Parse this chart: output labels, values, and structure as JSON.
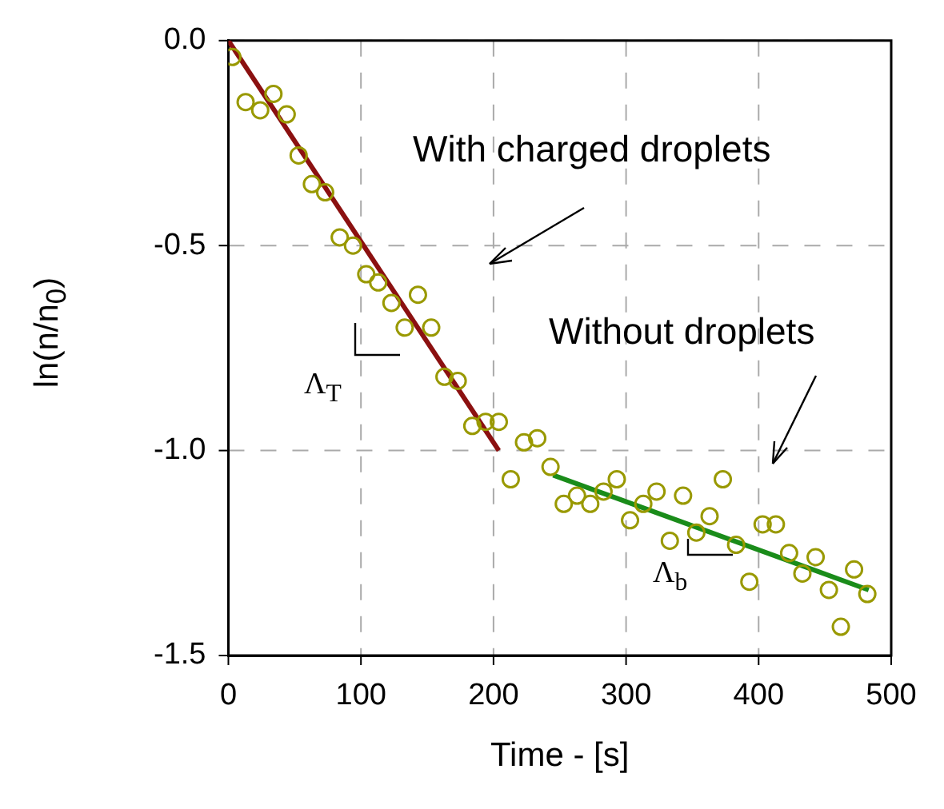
{
  "chart_data": {
    "type": "scatter",
    "xlabel": "Time - [s]",
    "ylabel": "ln(n/n$_{0}$)",
    "xlim": [
      0,
      500
    ],
    "xticks": [
      0,
      100,
      200,
      300,
      400,
      500
    ],
    "ylim": [
      -1.5,
      0
    ],
    "yticks": [
      {
        "value": -1.5,
        "label": "-1.5"
      },
      {
        "value": -1,
        "label": "-1.0"
      },
      {
        "value": -0.5,
        "label": "-0.5"
      },
      {
        "value": 0,
        "label": "0.0"
      }
    ],
    "grid": true,
    "legend": false,
    "series": [
      {
        "type": "scatter",
        "marker": "circle",
        "color": "#999900",
        "x": [
          3,
          13,
          24,
          34,
          44,
          53,
          63,
          73,
          84,
          94,
          104,
          113,
          123,
          133,
          143,
          153,
          163,
          173,
          184,
          194,
          204,
          213,
          223,
          233,
          243,
          253,
          263,
          273,
          283,
          293,
          303,
          313,
          323,
          333,
          343,
          353,
          363,
          373,
          383,
          393,
          403,
          413,
          423,
          433,
          443,
          453,
          462,
          472,
          482
        ],
        "values": [
          -0.04,
          -0.15,
          -0.17,
          -0.13,
          -0.18,
          -0.28,
          -0.35,
          -0.37,
          -0.48,
          -0.5,
          -0.57,
          -0.59,
          -0.64,
          -0.7,
          -0.62,
          -0.7,
          -0.82,
          -0.83,
          -0.94,
          -0.93,
          -0.93,
          -1.07,
          -0.98,
          -0.97,
          -1.04,
          -1.13,
          -1.11,
          -1.13,
          -1.1,
          -1.07,
          -1.17,
          -1.13,
          -1.1,
          -1.22,
          -1.11,
          -1.2,
          -1.16,
          -1.07,
          -1.23,
          -1.32,
          -1.18,
          -1.18,
          -1.25,
          -1.3,
          -1.26,
          -1.34,
          -1.43,
          -1.29,
          -1.35
        ]
      },
      {
        "type": "line",
        "marker": "none",
        "line_style": "solid",
        "color": "#8b1010",
        "x": [
          0,
          204
        ],
        "values": [
          0,
          -1.0
        ]
      },
      {
        "type": "line",
        "marker": "none",
        "line_style": "solid",
        "color": "#1a8c1a",
        "x": [
          245,
          483
        ],
        "values": [
          -1.06,
          -1.34
        ]
      }
    ],
    "annotations": [
      "With charged droplets",
      "Without droplets",
      "Λ$_{T}$",
      "Λ$_{b}$"
    ]
  }
}
